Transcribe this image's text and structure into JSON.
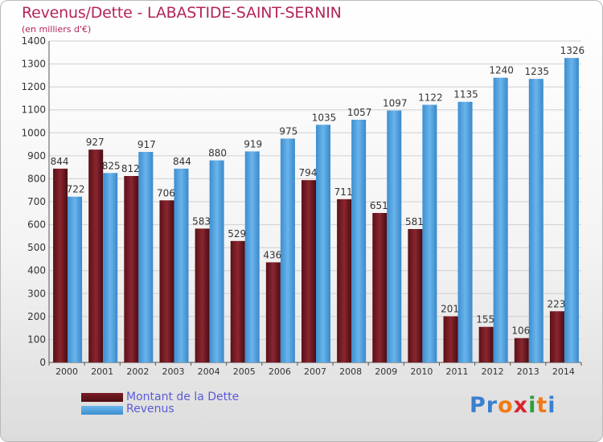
{
  "header": {
    "title": "Revenus/Dette - LABASTIDE-SAINT-SERNIN",
    "subtitle": "(en milliers d'€)"
  },
  "legend": {
    "debt_label": "Montant de la Dette",
    "revenue_label": "Revenus"
  },
  "logo": {
    "text": "Proxiti"
  },
  "colors": {
    "debt": "#6b1820",
    "revenue": "#4ea3e2",
    "title": "#b5245c",
    "legend_text": "#5b5bd6"
  },
  "chart_data": {
    "type": "bar",
    "categories": [
      "2000",
      "2001",
      "2002",
      "2003",
      "2004",
      "2005",
      "2006",
      "2007",
      "2008",
      "2009",
      "2010",
      "2011",
      "2012",
      "2013",
      "2014"
    ],
    "series": [
      {
        "name": "Montant de la Dette",
        "values": [
          844,
          927,
          812,
          706,
          583,
          529,
          436,
          794,
          711,
          651,
          581,
          201,
          155,
          106,
          223
        ]
      },
      {
        "name": "Revenus",
        "values": [
          722,
          825,
          917,
          844,
          880,
          919,
          975,
          1035,
          1057,
          1097,
          1122,
          1135,
          1240,
          1235,
          1326
        ]
      }
    ],
    "title": "Revenus/Dette - LABASTIDE-SAINT-SERNIN",
    "ylabel": "(en milliers d'€)",
    "ylim": [
      0,
      1400
    ],
    "yticks": [
      0,
      100,
      200,
      300,
      400,
      500,
      600,
      700,
      800,
      900,
      1000,
      1100,
      1200,
      1300,
      1400
    ],
    "grid": true,
    "legend_position": "bottom-left"
  }
}
